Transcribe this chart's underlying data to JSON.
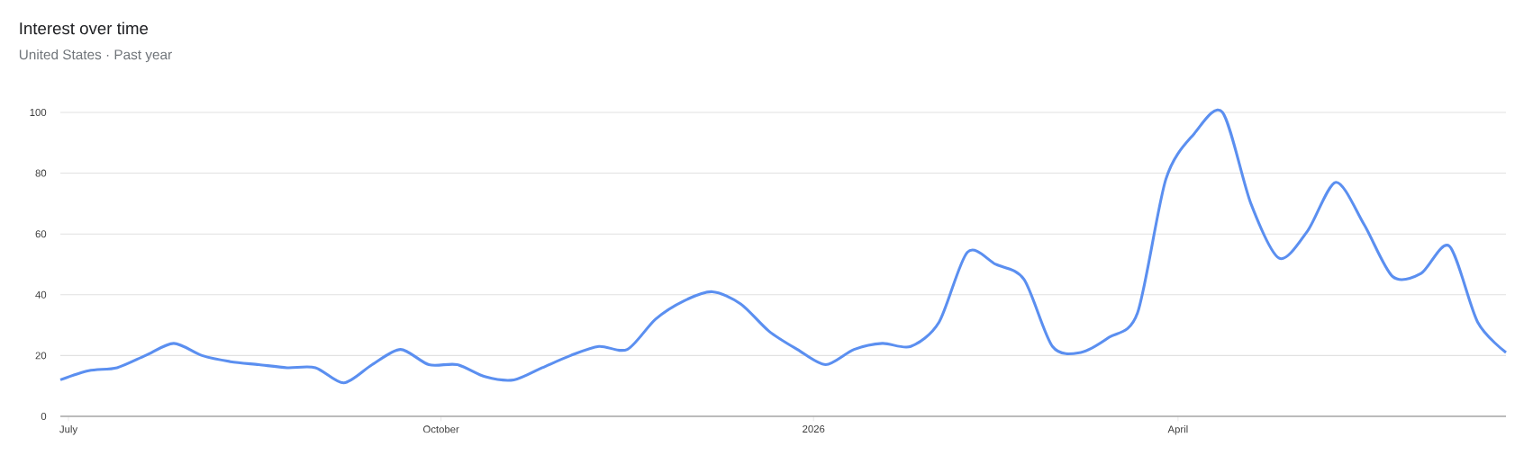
{
  "chart_data": {
    "type": "line",
    "title": "Interest over time",
    "subtitle": "United States · Past year",
    "x": [
      "2025-06-29",
      "2025-07-06",
      "2025-07-13",
      "2025-07-20",
      "2025-07-27",
      "2025-08-03",
      "2025-08-10",
      "2025-08-17",
      "2025-08-24",
      "2025-08-31",
      "2025-09-07",
      "2025-09-14",
      "2025-09-21",
      "2025-09-28",
      "2025-10-05",
      "2025-10-12",
      "2025-10-19",
      "2025-10-26",
      "2025-11-02",
      "2025-11-09",
      "2025-11-16",
      "2025-11-23",
      "2025-11-30",
      "2025-12-07",
      "2025-12-14",
      "2025-12-21",
      "2025-12-28",
      "2026-01-04",
      "2026-01-11",
      "2026-01-18",
      "2026-01-25",
      "2026-02-01",
      "2026-02-08",
      "2026-02-15",
      "2026-02-22",
      "2026-03-01",
      "2026-03-08",
      "2026-03-15",
      "2026-03-22",
      "2026-03-29",
      "2026-04-05",
      "2026-04-12",
      "2026-04-19",
      "2026-04-26",
      "2026-05-03",
      "2026-05-10",
      "2026-05-17",
      "2026-05-24",
      "2026-05-31",
      "2026-06-07",
      "2026-06-14",
      "2026-06-21"
    ],
    "series": [
      {
        "color": "#5b8ff0",
        "values": [
          12,
          15,
          16,
          20,
          24,
          20,
          18,
          17,
          16,
          16,
          11,
          17,
          22,
          17,
          17,
          13,
          12,
          16,
          20,
          23,
          22,
          32,
          38,
          41,
          37,
          28,
          22,
          17,
          22,
          24,
          23,
          31,
          54,
          50,
          45,
          23,
          21,
          26,
          34,
          78,
          93,
          100,
          70,
          52,
          61,
          77,
          63,
          46,
          47,
          56,
          31,
          21
        ]
      }
    ],
    "xlim": [
      "2025-06-29",
      "2026-06-21"
    ],
    "xticks": [
      {
        "value": "2025-07-01",
        "label": "July"
      },
      {
        "value": "2025-10-01",
        "label": "October"
      },
      {
        "value": "2026-01-01",
        "label": "2026"
      },
      {
        "value": "2026-04-01",
        "label": "April"
      }
    ],
    "ylim": [
      0,
      100
    ],
    "yticks": [
      0,
      20,
      40,
      60,
      80,
      100
    ],
    "grid": "y",
    "legend": false,
    "marker": "none",
    "line_style": "solid"
  }
}
